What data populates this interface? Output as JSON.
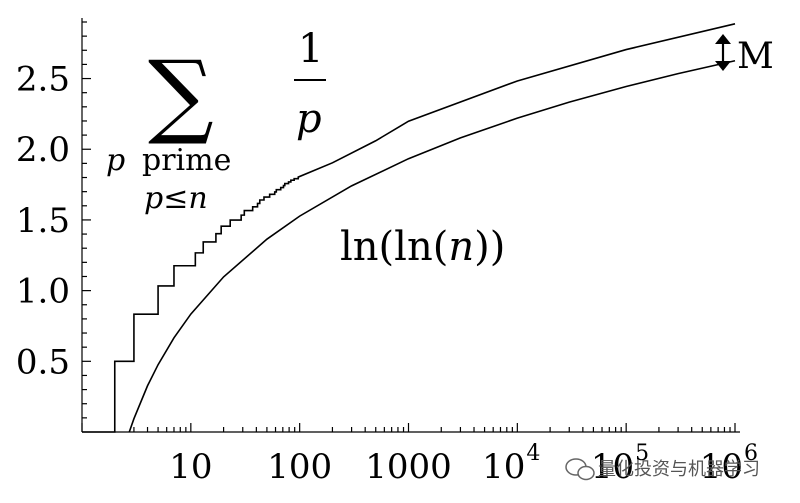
{
  "chart_data": {
    "type": "line",
    "x_scale": "log10",
    "xlim": [
      1,
      1000000
    ],
    "ylim": [
      0,
      2.9
    ],
    "x_ticks": [
      {
        "value": 10,
        "label": "10"
      },
      {
        "value": 100,
        "label": "100"
      },
      {
        "value": 1000,
        "label": "1000"
      },
      {
        "value": 10000,
        "label": "10",
        "exponent": "4"
      },
      {
        "value": 100000,
        "label": "10",
        "exponent": "5"
      },
      {
        "value": 1000000,
        "label": "10",
        "exponent": "6"
      }
    ],
    "y_ticks": [
      {
        "value": 0.5,
        "label": "0.5"
      },
      {
        "value": 1.0,
        "label": "1.0"
      },
      {
        "value": 1.5,
        "label": "1.5"
      },
      {
        "value": 2.0,
        "label": "2.0"
      },
      {
        "value": 2.5,
        "label": "2.5"
      }
    ],
    "series": [
      {
        "name": "sum_1_over_p",
        "kind": "step",
        "color": "#000000",
        "points": [
          [
            2,
            0.5
          ],
          [
            3,
            0.833
          ],
          [
            5,
            1.033
          ],
          [
            7,
            1.176
          ],
          [
            11,
            1.267
          ],
          [
            13,
            1.344
          ],
          [
            17,
            1.403
          ],
          [
            19,
            1.456
          ],
          [
            23,
            1.499
          ],
          [
            29,
            1.534
          ],
          [
            31,
            1.566
          ],
          [
            37,
            1.593
          ],
          [
            41,
            1.617
          ],
          [
            43,
            1.641
          ],
          [
            47,
            1.662
          ],
          [
            53,
            1.681
          ],
          [
            59,
            1.698
          ],
          [
            61,
            1.714
          ],
          [
            67,
            1.729
          ],
          [
            71,
            1.743
          ],
          [
            73,
            1.757
          ],
          [
            79,
            1.769
          ],
          [
            83,
            1.781
          ],
          [
            89,
            1.792
          ],
          [
            97,
            1.803
          ],
          [
            200,
            1.904
          ],
          [
            500,
            2.06
          ],
          [
            1000,
            2.198
          ],
          [
            10000,
            2.483
          ],
          [
            100000,
            2.705
          ],
          [
            1000000,
            2.887
          ]
        ]
      },
      {
        "name": "ln_ln_n",
        "kind": "function",
        "color": "#000000",
        "x": [
          2.718,
          3,
          4,
          5,
          7,
          10,
          20,
          50,
          100,
          300,
          1000,
          3000,
          10000,
          30000,
          100000,
          300000,
          1000000
        ],
        "y": [
          0,
          0.094,
          0.327,
          0.476,
          0.666,
          0.834,
          1.097,
          1.364,
          1.527,
          1.741,
          1.933,
          2.08,
          2.22,
          2.333,
          2.444,
          2.535,
          2.626
        ]
      }
    ],
    "annotations": {
      "sum_label": {
        "sigma": "∑",
        "numerator": "1",
        "denominator": "p",
        "condition_line1_var": "p",
        "condition_line1_word": "prime",
        "condition_line2": "p≤n"
      },
      "lnln_label": {
        "prefix": "ln(ln(",
        "var": "n",
        "suffix": "))"
      },
      "gap_label": "M"
    }
  },
  "watermark": {
    "text": "量化投资与机器学习",
    "icon": "wechat-icon"
  }
}
